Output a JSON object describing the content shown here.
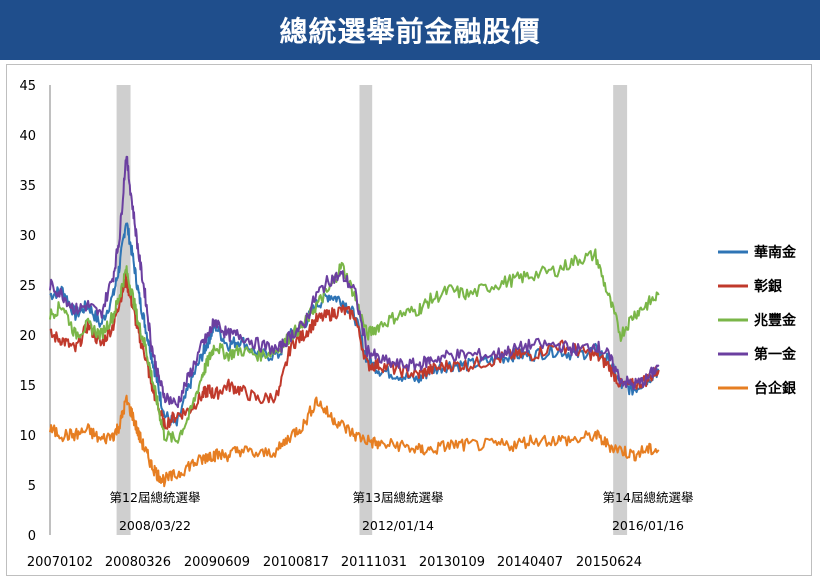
{
  "title": "總統選舉前金融股價",
  "chart_data": {
    "type": "line",
    "ylim": [
      0,
      45
    ],
    "yticks": [
      0,
      5,
      10,
      15,
      20,
      25,
      30,
      35,
      40,
      45
    ],
    "xticks": [
      "20070102",
      "20080326",
      "20090609",
      "20100817",
      "20111031",
      "20130109",
      "20140407",
      "20150624"
    ],
    "grid": false,
    "legend": "right",
    "annotations": [
      {
        "label": "第12屆總統選舉",
        "date": "2008/03/22",
        "band_start": 2008.05,
        "band_end": 2008.27
      },
      {
        "label": "第13屆總統選舉",
        "date": "2012/01/14",
        "band_start": 2011.88,
        "band_end": 2012.08
      },
      {
        "label": "第14屆總統選舉",
        "date": "2016/01/16",
        "band_start": 2015.88,
        "band_end": 2016.1
      }
    ],
    "series": [
      {
        "name": "華南金",
        "color": "#2e74b5",
        "x": [
          2007.0,
          2007.2,
          2007.4,
          2007.6,
          2007.8,
          2008.0,
          2008.1,
          2008.2,
          2008.3,
          2008.4,
          2008.5,
          2008.6,
          2008.7,
          2008.8,
          2009.0,
          2009.2,
          2009.4,
          2009.5,
          2009.6,
          2009.8,
          2010.0,
          2010.3,
          2010.6,
          2010.8,
          2011.0,
          2011.2,
          2011.4,
          2011.6,
          2011.8,
          2012.0,
          2012.2,
          2012.5,
          2012.8,
          2013.0,
          2013.3,
          2013.6,
          2014.0,
          2014.3,
          2014.6,
          2015.0,
          2015.3,
          2015.6,
          2015.8,
          2016.0,
          2016.2,
          2016.4,
          2016.6
        ],
        "y": [
          24,
          24.5,
          22,
          23,
          21,
          24,
          27,
          31.5,
          28,
          24,
          21,
          18,
          15,
          12,
          11,
          15,
          18,
          19.5,
          21,
          19,
          19.5,
          18,
          18,
          20,
          21,
          23,
          24,
          23.5,
          22,
          17.5,
          16.5,
          16,
          15.5,
          16.5,
          17,
          17,
          17.5,
          18,
          18,
          18.5,
          18,
          18.5,
          17.5,
          15,
          14.5,
          15.5,
          16.5
        ]
      },
      {
        "name": "彰銀",
        "color": "#c0392b",
        "x": [
          2007.0,
          2007.2,
          2007.4,
          2007.6,
          2007.8,
          2008.0,
          2008.1,
          2008.2,
          2008.3,
          2008.4,
          2008.5,
          2008.6,
          2008.7,
          2008.8,
          2009.0,
          2009.2,
          2009.4,
          2009.5,
          2009.6,
          2009.8,
          2010.0,
          2010.3,
          2010.6,
          2010.8,
          2011.0,
          2011.2,
          2011.4,
          2011.6,
          2011.8,
          2012.0,
          2012.2,
          2012.5,
          2012.8,
          2013.0,
          2013.3,
          2013.6,
          2014.0,
          2014.3,
          2014.6,
          2015.0,
          2015.3,
          2015.6,
          2015.8,
          2016.0,
          2016.2,
          2016.4,
          2016.6
        ],
        "y": [
          20,
          19.5,
          18.5,
          21,
          19,
          21,
          23.5,
          25.5,
          23,
          20,
          18,
          15,
          13,
          11,
          12,
          12.5,
          14,
          14.5,
          14,
          15,
          14.5,
          13.5,
          14,
          19,
          20,
          21.5,
          22,
          22.5,
          22,
          17,
          17,
          16.5,
          16,
          16.5,
          17,
          17,
          17.5,
          18,
          18,
          19,
          18.5,
          18,
          17,
          15,
          15,
          15.5,
          16.5
        ]
      },
      {
        "name": "兆豐金",
        "color": "#7ab648",
        "x": [
          2007.0,
          2007.2,
          2007.4,
          2007.6,
          2007.8,
          2008.0,
          2008.1,
          2008.2,
          2008.3,
          2008.4,
          2008.5,
          2008.6,
          2008.7,
          2008.8,
          2009.0,
          2009.2,
          2009.4,
          2009.5,
          2009.6,
          2009.8,
          2010.0,
          2010.3,
          2010.6,
          2010.8,
          2011.0,
          2011.2,
          2011.4,
          2011.6,
          2011.8,
          2012.0,
          2012.2,
          2012.5,
          2012.8,
          2013.0,
          2013.3,
          2013.6,
          2014.0,
          2014.3,
          2014.6,
          2015.0,
          2015.3,
          2015.6,
          2015.8,
          2016.0,
          2016.2,
          2016.4,
          2016.6
        ],
        "y": [
          22,
          23,
          20,
          21,
          20,
          22,
          24,
          26.5,
          24,
          21,
          19,
          16,
          13,
          10,
          9.5,
          12,
          16,
          17.5,
          19,
          18,
          18.5,
          18,
          18.5,
          20,
          21,
          23,
          24.5,
          27,
          24,
          20,
          21,
          22,
          22.5,
          23.5,
          24.5,
          24,
          25,
          25.5,
          26,
          26.5,
          27.5,
          28,
          24,
          20,
          22,
          23,
          24
        ]
      },
      {
        "name": "第一金",
        "color": "#6b3fa0",
        "x": [
          2007.0,
          2007.2,
          2007.4,
          2007.6,
          2007.8,
          2008.0,
          2008.1,
          2008.2,
          2008.3,
          2008.4,
          2008.5,
          2008.6,
          2008.7,
          2008.8,
          2009.0,
          2009.2,
          2009.4,
          2009.5,
          2009.6,
          2009.8,
          2010.0,
          2010.3,
          2010.6,
          2010.8,
          2011.0,
          2011.2,
          2011.4,
          2011.6,
          2011.8,
          2012.0,
          2012.2,
          2012.5,
          2012.8,
          2013.0,
          2013.3,
          2013.6,
          2014.0,
          2014.3,
          2014.6,
          2015.0,
          2015.3,
          2015.6,
          2015.8,
          2016.0,
          2016.2,
          2016.4,
          2016.6
        ],
        "y": [
          25,
          24,
          22.5,
          23,
          22,
          26,
          30,
          38,
          33,
          28,
          24,
          19,
          16,
          14,
          13,
          16,
          19,
          20,
          21.5,
          20,
          20,
          19,
          18.5,
          20,
          21,
          24,
          25.5,
          26,
          24.5,
          18.5,
          17.5,
          17,
          17,
          17.5,
          18,
          18,
          18,
          18.5,
          19,
          19,
          18.5,
          19,
          18,
          15.5,
          15,
          15.5,
          17
        ]
      },
      {
        "name": "台企銀",
        "color": "#e67e22",
        "x": [
          2007.0,
          2007.2,
          2007.4,
          2007.6,
          2007.8,
          2008.0,
          2008.1,
          2008.2,
          2008.3,
          2008.4,
          2008.5,
          2008.6,
          2008.7,
          2008.8,
          2009.0,
          2009.2,
          2009.4,
          2009.5,
          2009.6,
          2009.8,
          2010.0,
          2010.3,
          2010.6,
          2010.8,
          2011.0,
          2011.2,
          2011.4,
          2011.6,
          2011.8,
          2012.0,
          2012.2,
          2012.5,
          2012.8,
          2013.0,
          2013.3,
          2013.6,
          2014.0,
          2014.3,
          2014.6,
          2015.0,
          2015.3,
          2015.6,
          2015.8,
          2016.0,
          2016.2,
          2016.4,
          2016.6
        ],
        "y": [
          10.5,
          10,
          10,
          10.5,
          9.5,
          10,
          11,
          13.5,
          12,
          10,
          8.5,
          7,
          6,
          5.5,
          6,
          7,
          7.5,
          8,
          8,
          8,
          8.5,
          8,
          8.5,
          10,
          11,
          13.5,
          12,
          11,
          10,
          9.5,
          9,
          9,
          8.5,
          8.5,
          9,
          9,
          9,
          9,
          9.5,
          9.5,
          9.5,
          10,
          9,
          8.5,
          8,
          8.5,
          8.5
        ]
      }
    ]
  }
}
